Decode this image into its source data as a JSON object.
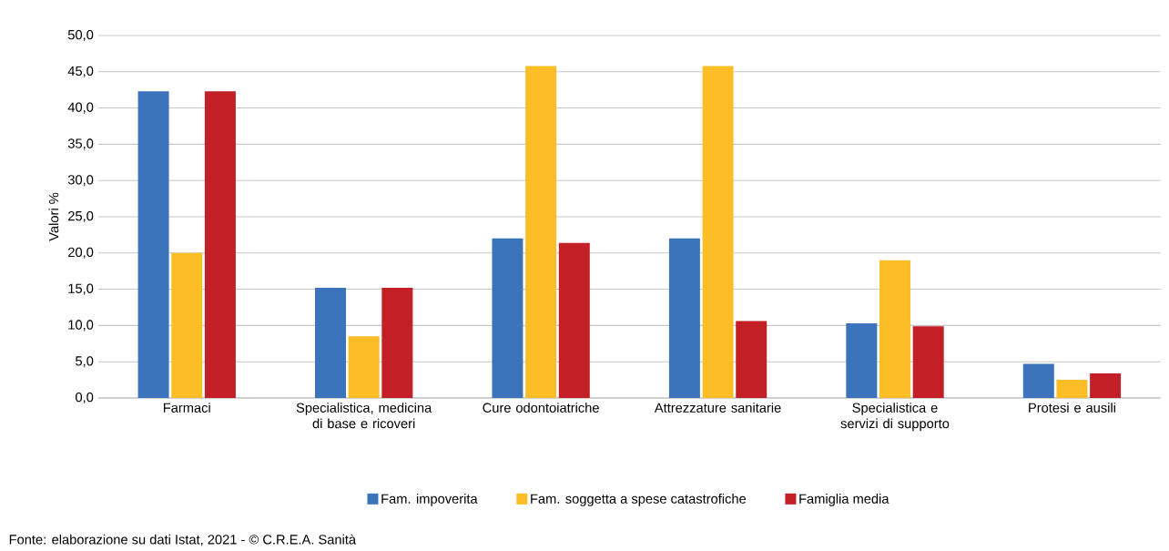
{
  "chart_data": {
    "type": "bar",
    "ylabel": "Valori %",
    "categories": [
      "Farmaci",
      "Specialistica, medicina di base e ricoveri",
      "Cure odontoiatriche",
      "Attrezzature sanitarie",
      "Specialistica e servizi di supporto",
      "Protesi e ausili"
    ],
    "series": [
      {
        "name": "Fam. impoverita",
        "color": "#3b74bb",
        "values": [
          42.3,
          15.2,
          22.0,
          22.0,
          10.3,
          4.7
        ]
      },
      {
        "name": "Fam. soggetta a spese catastrofiche",
        "color": "#fdbd26",
        "values": [
          20.0,
          8.5,
          45.8,
          45.8,
          19.0,
          2.5
        ]
      },
      {
        "name": "Famiglia media",
        "color": "#c31f26",
        "values": [
          42.3,
          15.2,
          21.4,
          10.6,
          9.9,
          3.4
        ]
      }
    ],
    "ylim": [
      0,
      50
    ],
    "yticks": [
      {
        "value": 0,
        "label": "0,0"
      },
      {
        "value": 5,
        "label": "5,0"
      },
      {
        "value": 10,
        "label": "10,0"
      },
      {
        "value": 15,
        "label": "15,0"
      },
      {
        "value": 20,
        "label": "20,0"
      },
      {
        "value": 25,
        "label": "25,0"
      },
      {
        "value": 30,
        "label": "30,0"
      },
      {
        "value": 35,
        "label": "35,0"
      },
      {
        "value": 40,
        "label": "40,0"
      },
      {
        "value": 45,
        "label": "45,0"
      },
      {
        "value": 50,
        "label": "50,0"
      }
    ],
    "grid": "y",
    "legend": "bottom",
    "annotations": [
      "Fonte: elaborazione su dati Istat, 2021 - © C.R.E.A. Sanità"
    ]
  }
}
